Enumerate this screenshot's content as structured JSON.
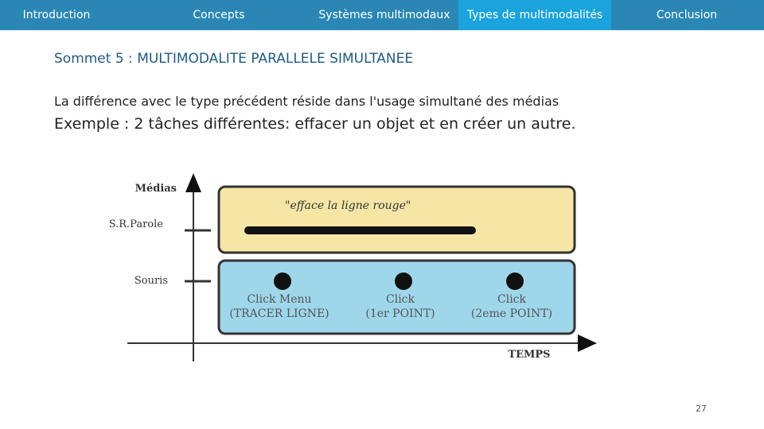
{
  "nav": {
    "tabs": [
      "Introduction",
      "Concepts",
      "Systèmes multimodaux",
      "Types de multimodalités",
      "Conclusion"
    ],
    "active": 3
  },
  "slide": {
    "title": "Sommet 5 : MULTIMODALITE PARALLELE SIMULTANEE",
    "lines": [
      "La différence avec le type précédent réside dans l'usage simultané des médias",
      "Exemple : 2 tâches différentes: effacer un objet et en créer un autre."
    ],
    "page_number": "27"
  },
  "diagram": {
    "y_axis_label": "Médias",
    "x_axis_label": "TEMPS",
    "rows": [
      "S.R.Parole",
      "Souris"
    ],
    "speech": "\"efface la ligne rouge\"",
    "clicks": [
      {
        "label": "Click Menu",
        "detail": "(TRACER LIGNE)"
      },
      {
        "label": "Click",
        "detail": "(1er POINT)"
      },
      {
        "label": "Click",
        "detail": "(2eme POINT)"
      }
    ]
  }
}
